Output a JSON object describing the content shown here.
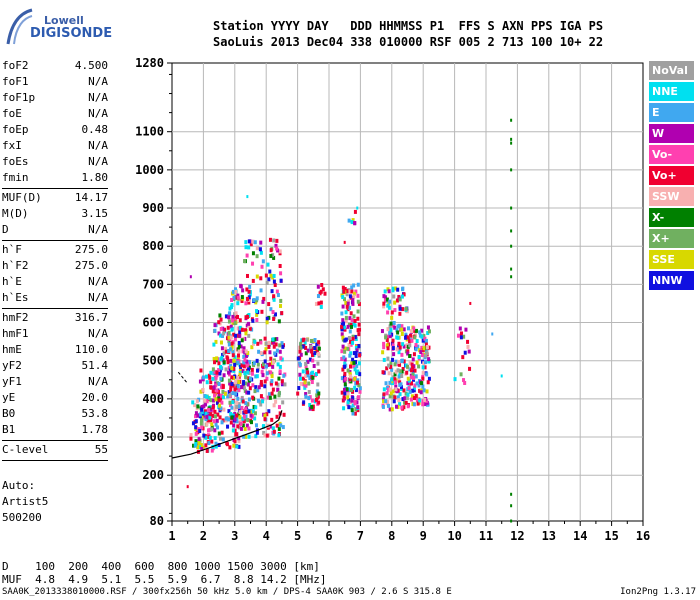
{
  "logo": {
    "line1": "Lowell",
    "line2": "DIGISONDE"
  },
  "header": {
    "row1": "Station YYYY DAY   DDD HHMMSS P1  FFS S AXN PPS IGA PS",
    "row2": "SaoLuis 2013 Dec04 338 010000 RSF 005 2 713 100 10+ 22"
  },
  "params": [
    {
      "group": [
        {
          "label": "foF2",
          "value": "4.500"
        },
        {
          "label": "foF1",
          "value": "N/A"
        },
        {
          "label": "foF1p",
          "value": "N/A"
        },
        {
          "label": "foE",
          "value": "N/A"
        },
        {
          "label": "foEp",
          "value": "0.48"
        },
        {
          "label": "fxI",
          "value": "N/A"
        },
        {
          "label": "foEs",
          "value": "N/A"
        },
        {
          "label": "fmin",
          "value": "1.80"
        }
      ]
    },
    {
      "group": [
        {
          "label": "MUF(D)",
          "value": "14.17"
        },
        {
          "label": "M(D)",
          "value": "3.15"
        },
        {
          "label": "D",
          "value": "N/A"
        }
      ]
    },
    {
      "group": [
        {
          "label": "h`F",
          "value": "275.0"
        },
        {
          "label": "h`F2",
          "value": "275.0"
        },
        {
          "label": "h`E",
          "value": "N/A"
        },
        {
          "label": "h`Es",
          "value": "N/A"
        }
      ]
    },
    {
      "group": [
        {
          "label": "hmF2",
          "value": "316.7"
        },
        {
          "label": "hmF1",
          "value": "N/A"
        },
        {
          "label": "hmE",
          "value": "110.0"
        },
        {
          "label": "yF2",
          "value": "51.4"
        },
        {
          "label": "yF1",
          "value": "N/A"
        },
        {
          "label": "yE",
          "value": "20.0"
        },
        {
          "label": "B0",
          "value": "53.8"
        },
        {
          "label": "B1",
          "value": "1.78"
        }
      ]
    },
    {
      "group": [
        {
          "label": "C-level",
          "value": "55"
        }
      ]
    }
  ],
  "auto": {
    "line1": "Auto:",
    "line2": "Artist5",
    "line3": "500200"
  },
  "legend": [
    {
      "label": "NoVal",
      "color": "#a0a0a0"
    },
    {
      "label": "NNE",
      "color": "#00e0f0"
    },
    {
      "label": "E",
      "color": "#40a8f0"
    },
    {
      "label": "W",
      "color": "#b000b0"
    },
    {
      "label": "Vo-",
      "color": "#ff40b0"
    },
    {
      "label": "Vo+",
      "color": "#f00030"
    },
    {
      "label": "SSW",
      "color": "#f8b0b0"
    },
    {
      "label": "X-",
      "color": "#008000"
    },
    {
      "label": "X+",
      "color": "#70b060"
    },
    {
      "label": "SSE",
      "color": "#d8d800"
    },
    {
      "label": "NNW",
      "color": "#1010e0"
    }
  ],
  "muf_table": {
    "row1": "D    100  200  400  600  800 1000 1500 3000 [km]",
    "row2": "MUF  4.8  4.9  5.1  5.5  5.9  6.7  8.8 14.2 [MHz]"
  },
  "footer": {
    "left": "SAA0K_2013338010000.RSF / 300fx256h 50 kHz 5.0 km / DPS-4 SAA0K 903 / 2.6 S 315.8 E",
    "right": "Ion2Png 1.3.17"
  },
  "chart_data": {
    "type": "scatter",
    "title": "",
    "xlabel": "",
    "ylabel": "",
    "xlim": [
      1,
      16
    ],
    "ylim": [
      80,
      1280
    ],
    "x_ticks": [
      1,
      2,
      3,
      4,
      5,
      6,
      7,
      8,
      9,
      10,
      11,
      12,
      13,
      14,
      15,
      16
    ],
    "y_ticks": [
      80,
      200,
      300,
      400,
      500,
      600,
      700,
      800,
      900,
      1000,
      1100,
      1280
    ],
    "grid": true,
    "clusters": [
      {
        "x_range": [
          1.6,
          2.3
        ],
        "y_range": [
          260,
          400
        ],
        "n": 90
      },
      {
        "x_range": [
          1.9,
          2.6
        ],
        "y_range": [
          340,
          480
        ],
        "n": 70
      },
      {
        "x_range": [
          2.3,
          3.2
        ],
        "y_range": [
          270,
          620
        ],
        "n": 200
      },
      {
        "x_range": [
          2.8,
          3.6
        ],
        "y_range": [
          340,
          700
        ],
        "n": 170
      },
      {
        "x_range": [
          3.2,
          4.6
        ],
        "y_range": [
          300,
          560
        ],
        "n": 200
      },
      {
        "x_range": [
          3.3,
          4.5
        ],
        "y_range": [
          600,
          820
        ],
        "n": 90
      },
      {
        "x_range": [
          5.0,
          5.7
        ],
        "y_range": [
          370,
          560
        ],
        "n": 110
      },
      {
        "x_range": [
          5.5,
          5.9
        ],
        "y_range": [
          640,
          700
        ],
        "n": 12
      },
      {
        "x_range": [
          6.4,
          7.0
        ],
        "y_range": [
          360,
          700
        ],
        "n": 200
      },
      {
        "x_range": [
          6.6,
          6.9
        ],
        "y_range": [
          860,
          890
        ],
        "n": 6
      },
      {
        "x_range": [
          7.7,
          8.5
        ],
        "y_range": [
          370,
          690
        ],
        "n": 200
      },
      {
        "x_range": [
          8.5,
          9.2
        ],
        "y_range": [
          380,
          590
        ],
        "n": 150
      },
      {
        "x_range": [
          10.0,
          10.5
        ],
        "y_range": [
          440,
          600
        ],
        "n": 16
      }
    ],
    "isolated_points": [
      {
        "x": 1.6,
        "y": 720
      },
      {
        "x": 1.5,
        "y": 170
      },
      {
        "x": 11.5,
        "y": 460
      },
      {
        "x": 11.2,
        "y": 570
      },
      {
        "x": 10.5,
        "y": 650
      },
      {
        "x": 6.5,
        "y": 810
      },
      {
        "x": 6.9,
        "y": 900
      },
      {
        "x": 3.4,
        "y": 930
      }
    ],
    "vertical_series": {
      "x": 11.8,
      "y_values": [
        80,
        120,
        150,
        720,
        740,
        800,
        840,
        900,
        1000,
        1070,
        1080,
        1130
      ]
    },
    "trace_curve": [
      [
        1.0,
        245
      ],
      [
        1.6,
        255
      ],
      [
        2.2,
        272
      ],
      [
        2.8,
        290
      ],
      [
        3.3,
        305
      ],
      [
        3.8,
        320
      ],
      [
        4.2,
        333
      ],
      [
        4.4,
        345
      ],
      [
        4.5,
        370
      ]
    ],
    "dashed_line": [
      [
        1.2,
        470
      ],
      [
        1.5,
        440
      ]
    ]
  }
}
